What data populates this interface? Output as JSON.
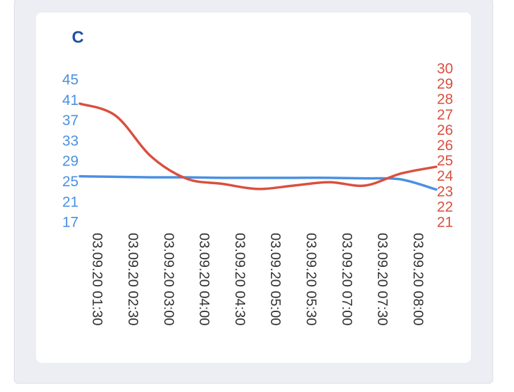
{
  "chart_data": {
    "type": "line",
    "title": "C",
    "categories": [
      "03.09.20 01:30",
      "03.09.20 02:30",
      "03.09.20 03:00",
      "03.09.20 04:00",
      "03.09.20 04:30",
      "03.09.20 05:00",
      "03.09.20 05:30",
      "03.09.20 07:00",
      "03.09.20 07:30",
      "03.09.20 08:00",
      null
    ],
    "series": [
      {
        "color": "#4a90e2",
        "values": [
          26.2,
          26.1,
          26.0,
          26.0,
          25.9,
          25.9,
          25.9,
          25.9,
          25.8,
          25.6,
          23.6
        ]
      },
      {
        "color": "#d9503f",
        "axis": "y2",
        "values": [
          28.0,
          27.3,
          24.9,
          23.6,
          23.3,
          23.0,
          23.2,
          23.4,
          23.2,
          23.9,
          24.3
        ]
      }
    ],
    "ylim": [
      17,
      45
    ],
    "yticks": [
      17,
      21,
      25,
      29,
      33,
      37,
      41,
      45
    ],
    "y2lim": [
      21,
      30
    ],
    "y2ticks": [
      21,
      {
        "value": 21.9,
        "label": "22"
      },
      {
        "value": 22.8,
        "label": "23"
      },
      {
        "value": 23.7,
        "label": "24"
      },
      {
        "value": 24.6,
        "label": "25"
      },
      {
        "value": 25.5,
        "label": "26"
      },
      {
        "value": 26.4,
        "label": "26"
      },
      {
        "value": 27.3,
        "label": "27"
      },
      {
        "value": 28.2,
        "label": "28"
      },
      {
        "value": 29.1,
        "label": "29"
      },
      30
    ],
    "grid": false
  }
}
